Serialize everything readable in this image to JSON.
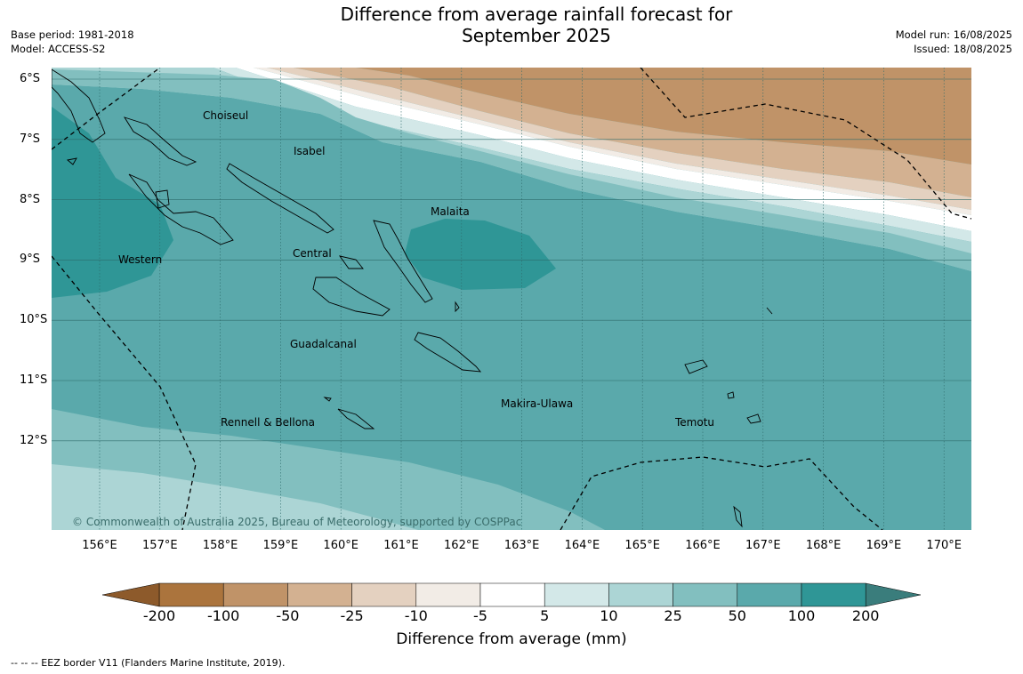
{
  "title": {
    "line1": "Difference from average rainfall forecast for",
    "line2": "September 2025"
  },
  "meta": {
    "base_period": "Base period: 1981-2018",
    "model": "Model: ACCESS-S2",
    "model_run": "Model run: 16/08/2025",
    "issued": "Issued: 18/08/2025"
  },
  "map": {
    "lat_labels": [
      "6°S",
      "7°S",
      "8°S",
      "9°S",
      "10°S",
      "11°S",
      "12°S"
    ],
    "lon_labels": [
      "156°E",
      "157°E",
      "158°E",
      "159°E",
      "160°E",
      "161°E",
      "162°E",
      "163°E",
      "164°E",
      "165°E",
      "166°E",
      "167°E",
      "168°E",
      "169°E",
      "170°E"
    ],
    "provinces": {
      "choiseul": "Choiseul",
      "isabel": "Isabel",
      "malaita": "Malaita",
      "western": "Western",
      "central": "Central",
      "guadalcanal": "Guadalcanal",
      "makira": "Makira-Ulawa",
      "rennell": "Rennell & Bellona",
      "temotu": "Temotu"
    },
    "copyright": "© Commonwealth of Australia 2025, Bureau of Meteorology, supported by COSPPac",
    "colors": {
      "c_200": "#2f9696",
      "c_100": "#5aa9ab",
      "c_50": "#82bfbf",
      "c_25": "#acd5d5",
      "c_10": "#d3e8e8",
      "c_5": "#ffffff",
      "c_m5": "#f2ece6",
      "c_m10": "#e4d1c0",
      "c_m25": "#d3b191",
      "c_m50": "#c09368",
      "c_m100": "#ab743d",
      "c_m200": "#8d5a2b"
    }
  },
  "colorbar": {
    "labels": [
      "-200",
      "-100",
      "-50",
      "-25",
      "-10",
      "-5",
      "5",
      "10",
      "25",
      "50",
      "100",
      "200"
    ],
    "title": "Difference from average (mm)"
  },
  "footer": "--  --  -- EEZ border V11 (Flanders Marine Institute, 2019)."
}
